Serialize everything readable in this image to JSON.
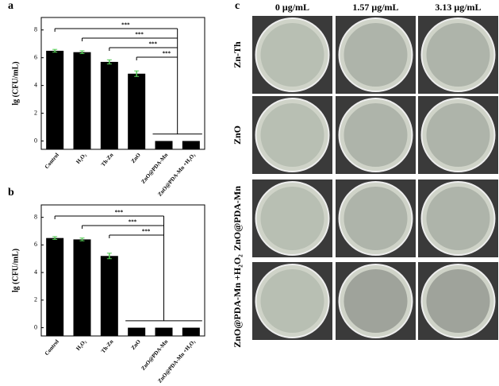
{
  "chart_data": [
    {
      "type": "bar",
      "panel": "a",
      "ylabel": "lg (CFU/mL)",
      "categories": [
        "Control",
        "H₂O₂",
        "Th-Zn",
        "ZnO",
        "ZnO@PDA-Mn",
        "ZnO@PDA-Mn +H₂O₂"
      ],
      "values": [
        6.5,
        6.4,
        5.7,
        4.85,
        0,
        0
      ],
      "errors": [
        0.1,
        0.1,
        0.15,
        0.2,
        0,
        0
      ],
      "color": "#000000",
      "ylim": [
        -0.6,
        8.9
      ],
      "yticks": [
        0,
        2,
        4,
        6,
        8
      ],
      "annotations": [
        "***",
        "***",
        "***",
        "***"
      ]
    },
    {
      "type": "bar",
      "panel": "b",
      "ylabel": "lg (CFU/mL)",
      "categories": [
        "Control",
        "H₂O₂",
        "Th-Zn",
        "ZnO",
        "ZnO@PDA-Mn",
        "ZnO@PDA-Mn +H₂O₂"
      ],
      "values": [
        6.5,
        6.4,
        5.2,
        0,
        0,
        0
      ],
      "errors": [
        0.1,
        0.1,
        0.2,
        0,
        0,
        0
      ],
      "color": "#000000",
      "ylim": [
        -0.6,
        8.9
      ],
      "yticks": [
        0,
        2,
        4,
        6,
        8
      ],
      "annotations": [
        "***",
        "***",
        "***"
      ]
    }
  ],
  "panel_c": {
    "label": "c",
    "columns": [
      "0 μg/mL",
      "1.57 μg/mL",
      "3.13 μg/mL"
    ],
    "rows": [
      "Zn-Th",
      "ZnO",
      "ZnO@PDA-Mn",
      "ZnO@PDA-Mn +H₂O₂"
    ]
  }
}
